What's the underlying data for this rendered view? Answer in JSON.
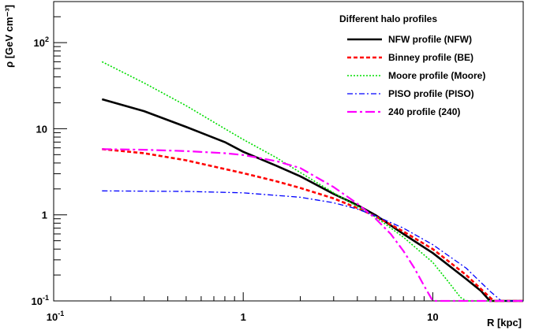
{
  "chart_data": {
    "type": "line",
    "x_scale": "log",
    "y_scale": "log",
    "xlim": [
      0.1,
      30
    ],
    "ylim": [
      0.1,
      300
    ],
    "xlabel": "R [kpc]",
    "ylabel": "ρ [GeV cm⁻³]",
    "x_ticks": [
      {
        "value": 0.1,
        "base": "10",
        "exp": "-1"
      },
      {
        "value": 1,
        "text": "1"
      },
      {
        "value": 10,
        "text": "10"
      }
    ],
    "y_ticks": [
      {
        "value": 0.1,
        "base": "10",
        "exp": "-1"
      },
      {
        "value": 1,
        "text": "1"
      },
      {
        "value": 10,
        "text": "10"
      },
      {
        "value": 100,
        "base": "10",
        "exp": "2"
      }
    ],
    "grid": false,
    "legend": {
      "title": "Different halo profiles",
      "placement": "top-right"
    },
    "series": [
      {
        "name": "NFW profile (NFW)",
        "color": "#000000",
        "style": "solid",
        "points": [
          [
            0.18,
            22
          ],
          [
            0.3,
            16
          ],
          [
            0.5,
            10.5
          ],
          [
            0.8,
            7
          ],
          [
            1.0,
            5.4
          ],
          [
            1.5,
            3.7
          ],
          [
            2.0,
            2.8
          ],
          [
            3.0,
            1.75
          ],
          [
            4.0,
            1.3
          ],
          [
            5.0,
            0.99
          ],
          [
            7.0,
            0.6
          ],
          [
            10.0,
            0.36
          ],
          [
            15.0,
            0.18
          ],
          [
            18.0,
            0.13
          ],
          [
            20.0,
            0.1
          ],
          [
            30.0,
            0.1
          ]
        ]
      },
      {
        "name": "Binney profile (BE)",
        "color": "#ff0000",
        "style": "dashed",
        "points": [
          [
            0.18,
            5.8
          ],
          [
            0.3,
            5.2
          ],
          [
            0.5,
            4.3
          ],
          [
            0.8,
            3.4
          ],
          [
            1.0,
            3.05
          ],
          [
            1.5,
            2.45
          ],
          [
            2.0,
            2.05
          ],
          [
            3.0,
            1.55
          ],
          [
            4.0,
            1.2
          ],
          [
            5.0,
            0.96
          ],
          [
            7.0,
            0.64
          ],
          [
            10.0,
            0.4
          ],
          [
            15.0,
            0.2
          ],
          [
            20.0,
            0.11
          ],
          [
            21.0,
            0.1
          ],
          [
            30.0,
            0.1
          ]
        ]
      },
      {
        "name": "Moore profile (Moore)",
        "color": "#00dd00",
        "style": "dotted",
        "points": [
          [
            0.18,
            60
          ],
          [
            0.3,
            34
          ],
          [
            0.5,
            18.5
          ],
          [
            0.8,
            10
          ],
          [
            1.0,
            7.5
          ],
          [
            1.5,
            4.6
          ],
          [
            2.0,
            3.1
          ],
          [
            3.0,
            1.8
          ],
          [
            4.0,
            1.25
          ],
          [
            5.0,
            0.94
          ],
          [
            7.0,
            0.55
          ],
          [
            10.0,
            0.28
          ],
          [
            12.0,
            0.17
          ],
          [
            14.0,
            0.11
          ],
          [
            15.0,
            0.1
          ],
          [
            30.0,
            0.1
          ]
        ]
      },
      {
        "name": "PISO profile (PISO)",
        "color": "#0000ff",
        "style": "dashdot",
        "points": [
          [
            0.18,
            1.9
          ],
          [
            0.5,
            1.87
          ],
          [
            1.0,
            1.8
          ],
          [
            2.0,
            1.6
          ],
          [
            3.0,
            1.38
          ],
          [
            4.0,
            1.17
          ],
          [
            5.0,
            0.97
          ],
          [
            7.0,
            0.7
          ],
          [
            10.0,
            0.45
          ],
          [
            15.0,
            0.24
          ],
          [
            20.0,
            0.13
          ],
          [
            23.0,
            0.1
          ],
          [
            30.0,
            0.1
          ]
        ]
      },
      {
        "name": "240 profile (240)",
        "color": "#ff00ff",
        "style": "dashdot-long",
        "points": [
          [
            0.18,
            5.8
          ],
          [
            0.3,
            5.7
          ],
          [
            0.5,
            5.5
          ],
          [
            0.8,
            5.2
          ],
          [
            1.0,
            4.95
          ],
          [
            1.5,
            4.2
          ],
          [
            2.0,
            3.5
          ],
          [
            3.0,
            2.1
          ],
          [
            4.0,
            1.35
          ],
          [
            5.0,
            0.9
          ],
          [
            6.0,
            0.6
          ],
          [
            7.0,
            0.38
          ],
          [
            8.0,
            0.24
          ],
          [
            9.0,
            0.15
          ],
          [
            10.0,
            0.1
          ],
          [
            30.0,
            0.1
          ]
        ]
      }
    ]
  }
}
